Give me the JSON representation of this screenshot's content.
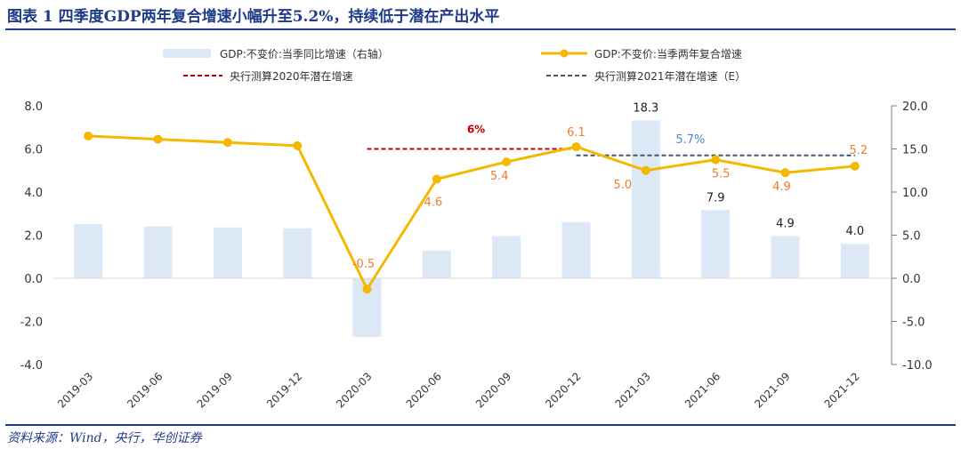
{
  "title": "图表 1  四季度GDP两年复合增速小幅升至5.2%，持续低于潜在产出水平",
  "source": "资料来源：Wind，央行，华创证券",
  "colors": {
    "bar": "#dce8f5",
    "line": "#f5b800",
    "ref2020": "#c00000",
    "ref2021": "#44546a",
    "axis": "#7f7f7f",
    "title": "#1f3c88",
    "label_orange": "#ed7d31",
    "label_blue": "#4a86c8",
    "label_dark": "#222222"
  },
  "chart_data": {
    "type": "bar+line",
    "categories": [
      "2019-03",
      "2019-06",
      "2019-09",
      "2019-12",
      "2020-03",
      "2020-06",
      "2020-09",
      "2020-12",
      "2021-03",
      "2021-06",
      "2021-09",
      "2021-12"
    ],
    "legend": {
      "bar": "GDP:不变价:当季同比增速（右轴）",
      "line": "GDP:不变价:当季两年复合增速",
      "ref2020": "央行测算2020年潜在增速",
      "ref2021": "央行测算2021年潜在增速（E）"
    },
    "left_axis": {
      "min": -4,
      "max": 8,
      "step": 2,
      "ticks": [
        "-4.0",
        "-2.0",
        "0.0",
        "2.0",
        "4.0",
        "6.0",
        "8.0"
      ]
    },
    "right_axis": {
      "min": -10,
      "max": 20,
      "step": 5,
      "ticks": [
        "-10.0",
        "-5.0",
        "0.0",
        "5.0",
        "10.0",
        "15.0",
        "20.0"
      ]
    },
    "bars_right_axis": [
      6.3,
      6.0,
      5.9,
      5.8,
      -6.8,
      3.2,
      4.9,
      6.5,
      18.3,
      7.9,
      4.9,
      4.0
    ],
    "bar_labels": [
      {
        "index": 8,
        "text": "18.3"
      },
      {
        "index": 9,
        "text": "7.9"
      },
      {
        "index": 10,
        "text": "4.9"
      },
      {
        "index": 11,
        "text": "4.0"
      }
    ],
    "line_left_axis": [
      6.6,
      6.45,
      6.3,
      6.15,
      -0.5,
      4.6,
      5.4,
      6.1,
      5.0,
      5.5,
      4.9,
      5.2
    ],
    "line_labels": [
      {
        "index": 4,
        "text": "-0.5"
      },
      {
        "index": 5,
        "text": "4.6"
      },
      {
        "index": 6,
        "text": "5.4"
      },
      {
        "index": 7,
        "text": "6.1"
      },
      {
        "index": 8,
        "text": "5.0"
      },
      {
        "index": 9,
        "text": "5.5"
      },
      {
        "index": 10,
        "text": "4.9"
      },
      {
        "index": 11,
        "text": "5.2"
      }
    ],
    "ref2020": {
      "value_left": 6.0,
      "from_index": 4,
      "to_index": 7,
      "label": "6%"
    },
    "ref2021": {
      "value_left": 5.7,
      "from_index": 7,
      "to_index": 11,
      "label": "5.7%"
    }
  }
}
